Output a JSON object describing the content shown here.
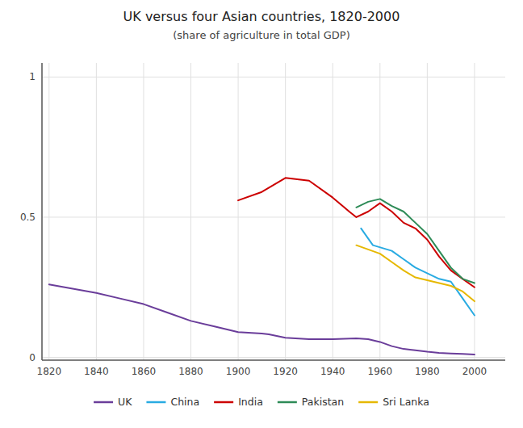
{
  "chart_data": {
    "type": "line",
    "title": "UK versus four Asian countries, 1820-2000",
    "subtitle": "(share of agriculture in total GDP)",
    "xlim": [
      1817,
      2013
    ],
    "ylim": [
      -0.01,
      1.05
    ],
    "xticks": [
      1820,
      1840,
      1860,
      1880,
      1900,
      1920,
      1940,
      1960,
      1980,
      2000
    ],
    "yticks": [
      0,
      0.5,
      1
    ],
    "grid": true,
    "legend": "bottom",
    "series": [
      {
        "name": "UK",
        "color": "#6a3d9a",
        "x": [
          1820,
          1830,
          1840,
          1850,
          1860,
          1870,
          1880,
          1890,
          1900,
          1910,
          1913,
          1920,
          1930,
          1940,
          1950,
          1955,
          1960,
          1965,
          1970,
          1975,
          1980,
          1985,
          1990,
          1995,
          2000
        ],
        "values": [
          0.26,
          0.245,
          0.23,
          0.21,
          0.19,
          0.16,
          0.13,
          0.11,
          0.09,
          0.085,
          0.082,
          0.07,
          0.065,
          0.065,
          0.068,
          0.065,
          0.055,
          0.04,
          0.03,
          0.025,
          0.02,
          0.016,
          0.014,
          0.012,
          0.01
        ]
      },
      {
        "name": "China",
        "color": "#29abe2",
        "x": [
          1952,
          1957,
          1965,
          1970,
          1975,
          1980,
          1985,
          1990,
          1995,
          2000
        ],
        "values": [
          0.46,
          0.4,
          0.38,
          0.35,
          0.32,
          0.3,
          0.28,
          0.27,
          0.21,
          0.15
        ]
      },
      {
        "name": "India",
        "color": "#cc0000",
        "x": [
          1900,
          1910,
          1920,
          1930,
          1940,
          1947,
          1950,
          1955,
          1960,
          1965,
          1970,
          1975,
          1980,
          1985,
          1990,
          1995,
          2000
        ],
        "values": [
          0.56,
          0.59,
          0.64,
          0.63,
          0.57,
          0.52,
          0.5,
          0.52,
          0.55,
          0.52,
          0.48,
          0.46,
          0.42,
          0.36,
          0.31,
          0.28,
          0.25
        ]
      },
      {
        "name": "Pakistan",
        "color": "#2e8b57",
        "x": [
          1950,
          1955,
          1960,
          1965,
          1970,
          1975,
          1980,
          1985,
          1990,
          1995,
          2000
        ],
        "values": [
          0.535,
          0.555,
          0.565,
          0.54,
          0.52,
          0.48,
          0.44,
          0.38,
          0.32,
          0.28,
          0.265
        ]
      },
      {
        "name": "Sri Lanka",
        "color": "#e6b800",
        "x": [
          1950,
          1955,
          1960,
          1965,
          1970,
          1975,
          1980,
          1985,
          1990,
          1995,
          2000
        ],
        "values": [
          0.4,
          0.385,
          0.37,
          0.34,
          0.31,
          0.285,
          0.275,
          0.265,
          0.255,
          0.235,
          0.2
        ]
      }
    ]
  }
}
